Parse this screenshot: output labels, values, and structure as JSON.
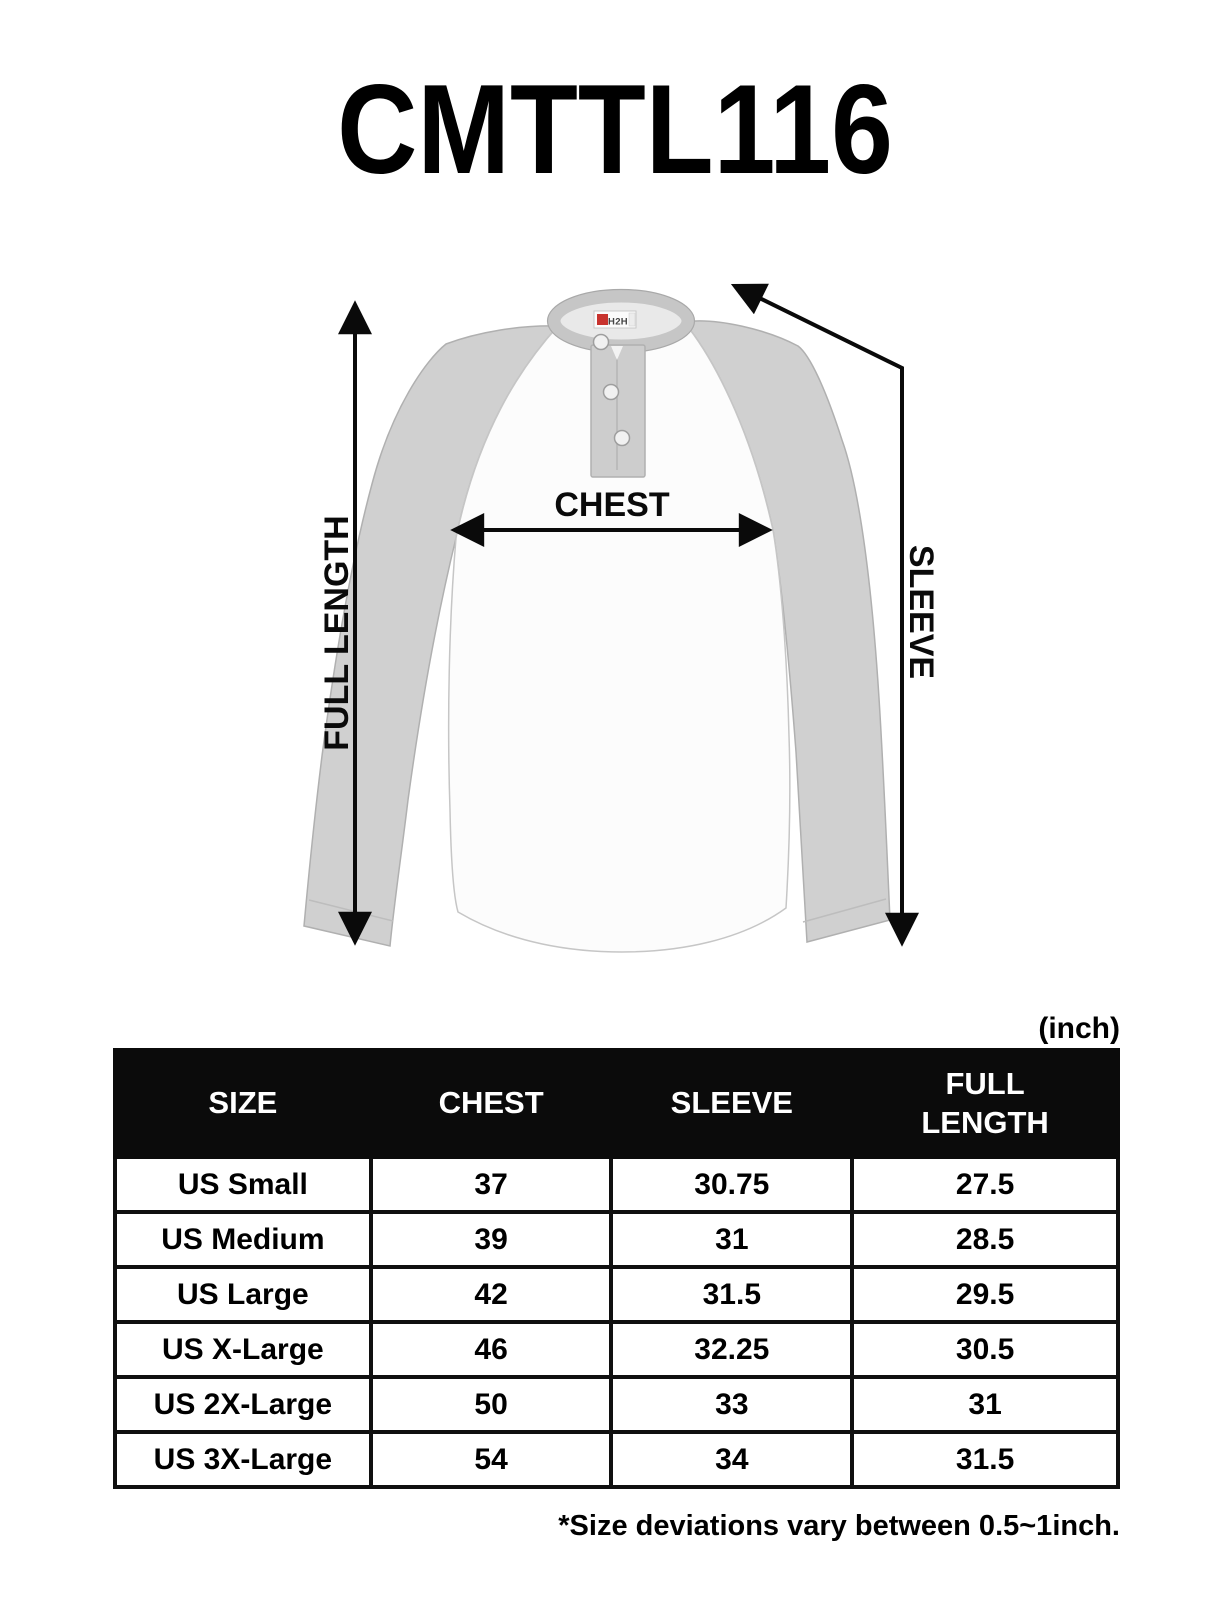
{
  "page": {
    "title": "CMTTL116",
    "unit_label": "(inch)",
    "footnote": "*Size deviations vary between 0.5~1inch."
  },
  "diagram": {
    "full_length_label": "FULL LENGTH",
    "chest_label": "CHEST",
    "sleeve_label": "SLEEVE",
    "brand_tag": "H2H",
    "colors": {
      "sleeve": "#d0d0d0",
      "body": "#fcfcfc",
      "collar": "#c6c6c6",
      "placket": "#cdcdcd",
      "button": "#f1f1f1",
      "tag_red": "#c8332e",
      "arrow": "#0a0a0a"
    }
  },
  "chart_data": {
    "type": "table",
    "title": "CMTTL116",
    "unit": "inch",
    "columns": [
      "SIZE",
      "CHEST",
      "SLEEVE",
      "FULL LENGTH"
    ],
    "rows": [
      [
        "US Small",
        "37",
        "30.75",
        "27.5"
      ],
      [
        "US Medium",
        "39",
        "31",
        "28.5"
      ],
      [
        "US Large",
        "42",
        "31.5",
        "29.5"
      ],
      [
        "US X-Large",
        "46",
        "32.25",
        "30.5"
      ],
      [
        "US 2X-Large",
        "50",
        "33",
        "31"
      ],
      [
        "US 3X-Large",
        "54",
        "34",
        "31.5"
      ]
    ]
  }
}
